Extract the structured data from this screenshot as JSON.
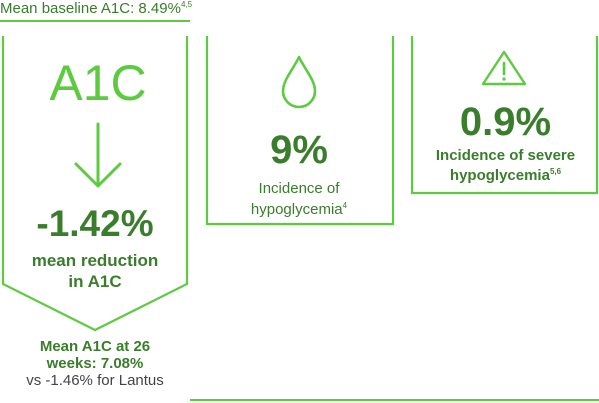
{
  "colors": {
    "accent": "#5dcb3f",
    "primary_text": "#3a7d2c",
    "secondary_text": "#444444"
  },
  "header": {
    "baseline_text": "Mean baseline A1C: 8.49%",
    "baseline_refs": "4,5"
  },
  "panel_a1c": {
    "icon_text": "A1C",
    "arrow_icon": "down-arrow-icon",
    "value": "-1.42%",
    "label_line1": "mean reduction",
    "label_line2": "in A1C",
    "mean_line1": "Mean A1C at 26",
    "mean_line2": "weeks: 7.08%",
    "comparison": "vs -1.46% for Lantus"
  },
  "panel_hypo": {
    "icon": "drop-icon",
    "value": "9%",
    "label_line1": "Incidence of",
    "label_line2": "hypoglycemia",
    "refs": "4"
  },
  "panel_severe": {
    "icon": "warning-icon",
    "value": "0.9%",
    "label_line1": "Incidence of severe",
    "label_line2": "hypoglycemia",
    "refs": "5,6"
  }
}
